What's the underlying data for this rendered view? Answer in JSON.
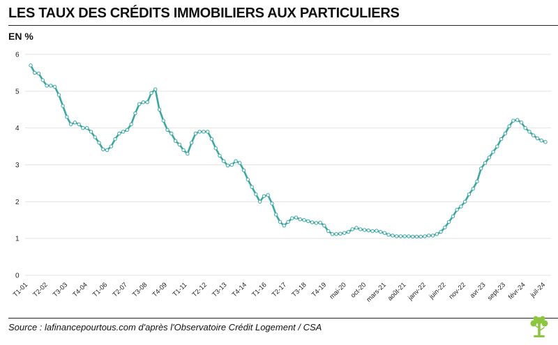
{
  "header": {
    "title": "LES TAUX DES CRÉDITS IMMOBILIERS AUX PARTICULIERS",
    "unit_label": "EN %"
  },
  "footer": {
    "source": "Source : lafinancepourtous.com d'après l'Observatoire Crédit Logement / CSA"
  },
  "colors": {
    "line": "#3aa8a0",
    "marker_fill": "#ffffff",
    "logo": "#8cc63f"
  },
  "icons": {
    "logo": "tree-logo-icon"
  },
  "chart_data": {
    "type": "line",
    "title": "LES TAUX DES CRÉDITS IMMOBILIERS AUX PARTICULIERS",
    "ylabel": "EN %",
    "xlabel": "",
    "ylim": [
      0,
      6
    ],
    "yticks": [
      0,
      1,
      2,
      3,
      4,
      5,
      6
    ],
    "grid": true,
    "x_tick_labels": [
      "T1-01",
      "T2-02",
      "T3-03",
      "T4-04",
      "T1-06",
      "T2-07",
      "T3-08",
      "T4-09",
      "T1-11",
      "T2-12",
      "T3-13",
      "T4-14",
      "T1-16",
      "T2-17",
      "T3-18",
      "T4-19",
      "mai-20",
      "oct-20",
      "mars-21",
      "août-21",
      "janv-22",
      "juin-22",
      "nov-22",
      "avr-23",
      "sept-23",
      "févr-24",
      "juil-24"
    ],
    "series": [
      {
        "values": [
          5.7,
          5.5,
          5.48,
          5.3,
          5.15,
          5.15,
          5.12,
          4.9,
          4.6,
          4.3,
          4.1,
          4.15,
          4.1,
          4.0,
          4.0,
          3.9,
          3.75,
          3.6,
          3.42,
          3.4,
          3.5,
          3.7,
          3.85,
          3.9,
          3.95,
          4.1,
          4.4,
          4.65,
          4.7,
          4.7,
          4.95,
          5.05,
          4.5,
          4.2,
          3.95,
          3.85,
          3.65,
          3.55,
          3.4,
          3.3,
          3.6,
          3.85,
          3.9,
          3.9,
          3.9,
          3.7,
          3.45,
          3.25,
          3.1,
          2.98,
          3.0,
          3.1,
          3.05,
          2.85,
          2.6,
          2.4,
          2.2,
          2.0,
          2.15,
          2.18,
          1.95,
          1.65,
          1.45,
          1.35,
          1.45,
          1.55,
          1.57,
          1.52,
          1.5,
          1.47,
          1.44,
          1.42,
          1.43,
          1.35,
          1.2,
          1.12,
          1.12,
          1.13,
          1.15,
          1.18,
          1.25,
          1.29,
          1.25,
          1.23,
          1.22,
          1.2,
          1.21,
          1.18,
          1.15,
          1.1,
          1.08,
          1.06,
          1.06,
          1.06,
          1.06,
          1.05,
          1.05,
          1.05,
          1.06,
          1.08,
          1.08,
          1.12,
          1.18,
          1.3,
          1.45,
          1.6,
          1.78,
          1.87,
          2.0,
          2.2,
          2.35,
          2.55,
          2.9,
          3.05,
          3.2,
          3.35,
          3.5,
          3.7,
          3.85,
          4.05,
          4.2,
          4.22,
          4.15,
          4.0,
          3.9,
          3.8,
          3.72,
          3.66,
          3.62
        ]
      }
    ]
  }
}
